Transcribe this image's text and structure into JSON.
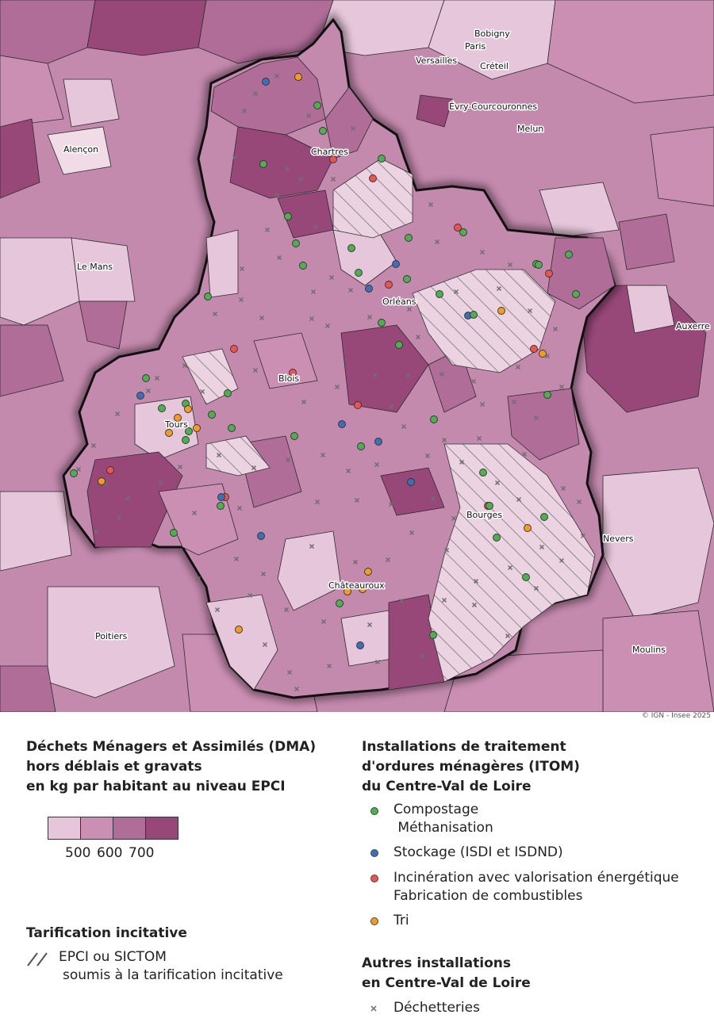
{
  "credit": "© IGN - Insee 2025",
  "colors": {
    "class_lt500": "#e6c6da",
    "class_500_600": "#cb8fb4",
    "class_600_700": "#b06d98",
    "class_gt700": "#974878",
    "compostage": "#4caf50",
    "stockage": "#3c6fb6",
    "incineration": "#ef5350",
    "tri": "#f39c22",
    "dechetterie": "#777777"
  },
  "cities": [
    {
      "name": "Bobigny"
    },
    {
      "name": "Paris"
    },
    {
      "name": "Versailles"
    },
    {
      "name": "Créteil"
    },
    {
      "name": "Évry-Courcouronnes"
    },
    {
      "name": "Melun"
    },
    {
      "name": "Alençon"
    },
    {
      "name": "Chartres"
    },
    {
      "name": "Le Mans"
    },
    {
      "name": "Orléans"
    },
    {
      "name": "Auxerre"
    },
    {
      "name": "Blois"
    },
    {
      "name": "Tours"
    },
    {
      "name": "Bourges"
    },
    {
      "name": "Nevers"
    },
    {
      "name": "Châteauroux"
    },
    {
      "name": "Poitiers"
    },
    {
      "name": "Moulins"
    }
  ],
  "legend_dma": {
    "title_lines": [
      "Déchets Ménagers et Assimilés (DMA)",
      "hors déblais et gravats",
      "en kg par habitant au niveau EPCI"
    ],
    "thresholds": [
      "500",
      "600",
      "700"
    ]
  },
  "legend_tarif": {
    "title": "Tarification incitative",
    "item_lines": [
      "EPCI ou SICTOM",
      "soumis à la tarification incitative"
    ]
  },
  "legend_itom": {
    "title_lines": [
      "Installations de traitement",
      "d'ordures ménagères (ITOM)",
      "du Centre-Val de Loire"
    ],
    "items": [
      {
        "lines": [
          "Compostage",
          " Méthanisation"
        ],
        "type": "compostage"
      },
      {
        "lines": [
          "Stockage (ISDI et ISDND)"
        ],
        "type": "stockage"
      },
      {
        "lines": [
          "Incinération avec valorisation énergétique",
          "Fabrication de combustibles"
        ],
        "type": "incineration"
      },
      {
        "lines": [
          "Tri"
        ],
        "type": "tri"
      }
    ]
  },
  "legend_autres": {
    "title_lines": [
      "Autres installations",
      "en Centre-Val de Loire"
    ],
    "item": "Déchetteries"
  }
}
